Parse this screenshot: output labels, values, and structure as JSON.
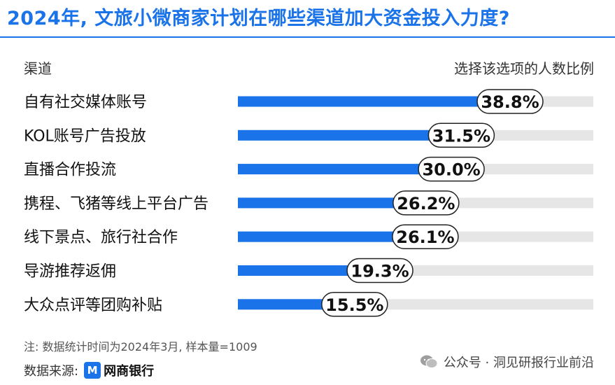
{
  "title": "2024年, 文旅小微商家计划在哪些渠道加大资金投入力度?",
  "header": {
    "left": "渠道",
    "right": "选择该选项的人数比例"
  },
  "chart_data": {
    "type": "bar",
    "orientation": "horizontal",
    "categories": [
      "自有社交媒体账号",
      "KOL账号广告投放",
      "直播合作投流",
      "携程、飞猪等线上平台广告",
      "线下景点、旅行社合作",
      "导游推荐返佣",
      "大众点评等团购补贴"
    ],
    "values": [
      38.8,
      31.5,
      30.0,
      26.2,
      26.1,
      19.3,
      15.5
    ],
    "value_labels": [
      "38.8%",
      "31.5%",
      "30.0%",
      "26.2%",
      "26.1%",
      "19.3%",
      "15.5%"
    ],
    "xlim": [
      0,
      100
    ],
    "bar_color": "#1a73e8",
    "track_color": "#e6e6e6"
  },
  "footer": {
    "note": "注: 数据统计时间为2024年3月, 样本量=1009",
    "source_label": "数据来源:",
    "source_logo_mark": "M",
    "source_logo_text": "网商银行",
    "wechat": "公众号 · 洞见研报行业前沿"
  },
  "colors": {
    "accent": "#1a73e8"
  }
}
